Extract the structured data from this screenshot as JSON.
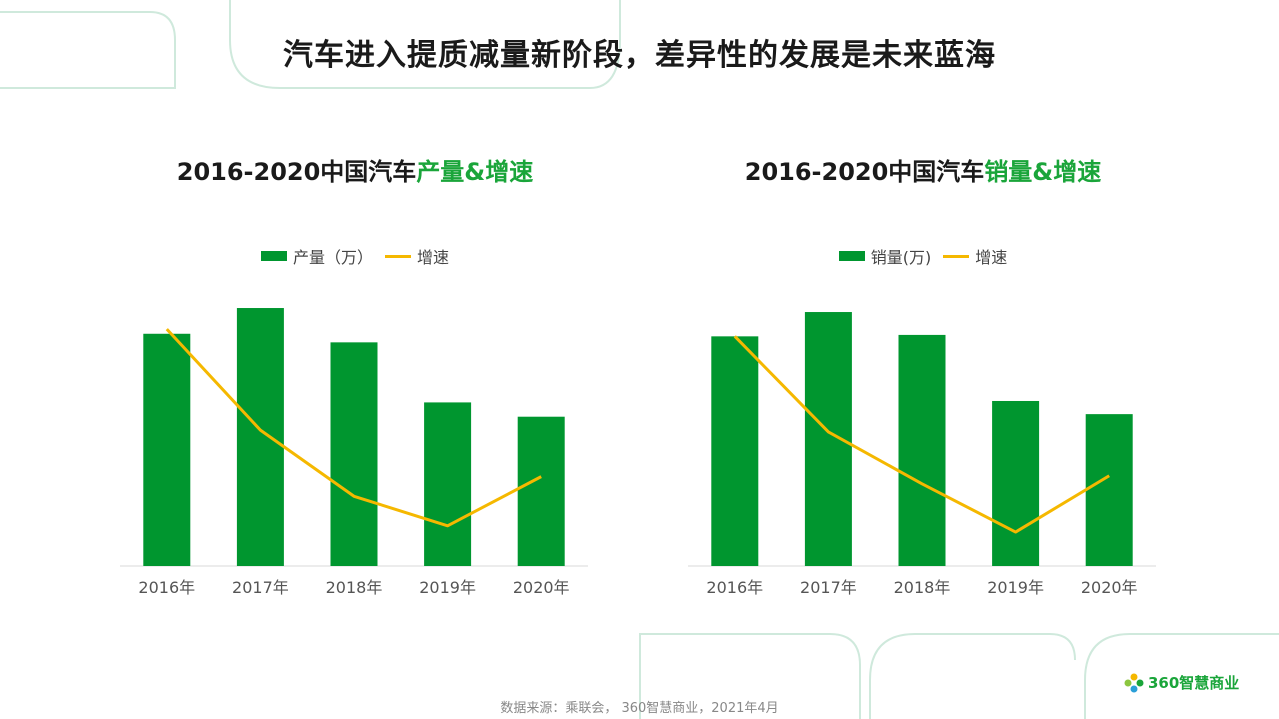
{
  "header": {
    "title": "汽车进入提质减量新阶段，差异性的发展是未来蓝海"
  },
  "charts": [
    {
      "title_prefix": "2016-2020中国汽车",
      "title_highlight": "产量&增速",
      "legend_bar": "产量（万）",
      "legend_line": "增速"
    },
    {
      "title_prefix": "2016-2020中国汽车",
      "title_highlight": "销量&增速",
      "legend_bar": "销量(万)",
      "legend_line": "增速"
    }
  ],
  "chart_data": [
    {
      "type": "bar",
      "categories": [
        "2016年",
        "2017年",
        "2018年",
        "2019年",
        "2020年"
      ],
      "series": [
        {
          "name": "产量（万）",
          "type": "bar",
          "values": [
            2812,
            2902,
            2782,
            2572,
            2522
          ]
        },
        {
          "name": "增速",
          "type": "line",
          "values": [
            14.5,
            3.2,
            -4.2,
            -7.5,
            -2.0
          ]
        }
      ],
      "bar_ylim": [
        2000,
        3000
      ],
      "line_ylim": [
        -12,
        20
      ],
      "grid": false,
      "legend": "top-center"
    },
    {
      "type": "bar",
      "categories": [
        "2016年",
        "2017年",
        "2018年",
        "2019年",
        "2020年"
      ],
      "series": [
        {
          "name": "销量(万)",
          "type": "bar",
          "values": [
            2803,
            2888,
            2808,
            2577,
            2531
          ]
        },
        {
          "name": "增速",
          "type": "line",
          "values": [
            13.7,
            3.0,
            -2.8,
            -8.2,
            -1.9
          ]
        }
      ],
      "bar_ylim": [
        2000,
        3000
      ],
      "line_ylim": [
        -12,
        20
      ],
      "grid": false,
      "legend": "top-center"
    }
  ],
  "colors": {
    "bar": "#00962f",
    "line": "#f5b800",
    "accent": "#1aa53a",
    "deco": "#cfe9dc"
  },
  "footer": {
    "source": "数据来源：乘联会， 360智慧商业，2021年4月"
  },
  "logo": {
    "text": "360智慧商业",
    "icon": "pinwheel-icon"
  }
}
